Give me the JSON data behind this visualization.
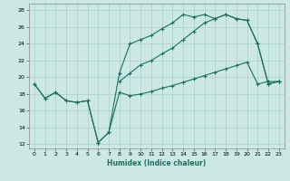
{
  "xlabel": "Humidex (Indice chaleur)",
  "bg_color": "#cce8e3",
  "line_color": "#1e6e60",
  "grid_color": "#aad0cb",
  "xlim": [
    -0.5,
    23.5
  ],
  "ylim": [
    11.5,
    28.8
  ],
  "xticks": [
    0,
    1,
    2,
    3,
    4,
    5,
    6,
    7,
    8,
    9,
    10,
    11,
    12,
    13,
    14,
    15,
    16,
    17,
    18,
    19,
    20,
    21,
    22,
    23
  ],
  "yticks": [
    12,
    14,
    16,
    18,
    20,
    22,
    24,
    26,
    28
  ],
  "curve1_x": [
    0,
    1,
    2,
    3,
    4,
    5,
    6,
    7,
    8,
    9,
    10,
    11,
    12,
    13,
    14,
    15,
    16,
    17,
    18,
    19,
    20,
    21,
    22,
    23
  ],
  "curve1_y": [
    19.2,
    17.5,
    18.2,
    17.2,
    17.0,
    17.2,
    12.2,
    13.4,
    18.2,
    17.8,
    18.0,
    18.3,
    18.7,
    19.0,
    19.4,
    19.8,
    20.2,
    20.6,
    21.0,
    21.4,
    21.8,
    19.2,
    19.5,
    19.5
  ],
  "curve2_x": [
    0,
    1,
    2,
    3,
    4,
    5,
    6,
    7,
    8,
    9,
    10,
    11,
    12,
    13,
    14,
    15,
    16,
    17,
    18,
    19,
    20,
    21,
    22,
    23
  ],
  "curve2_y": [
    19.2,
    17.5,
    18.2,
    17.2,
    17.0,
    17.2,
    12.2,
    13.4,
    20.5,
    24.0,
    24.5,
    25.0,
    25.8,
    26.5,
    27.5,
    27.2,
    27.5,
    27.0,
    27.5,
    27.0,
    26.8,
    24.0,
    19.2,
    19.5
  ],
  "curve3_x": [
    8,
    9,
    10,
    11,
    12,
    13,
    14,
    15,
    16,
    17,
    18,
    19,
    20,
    21,
    22,
    23
  ],
  "curve3_y": [
    19.5,
    20.5,
    21.5,
    22.0,
    22.8,
    23.5,
    24.5,
    25.5,
    26.5,
    27.0,
    27.5,
    27.0,
    26.8,
    24.0,
    19.2,
    19.5
  ]
}
